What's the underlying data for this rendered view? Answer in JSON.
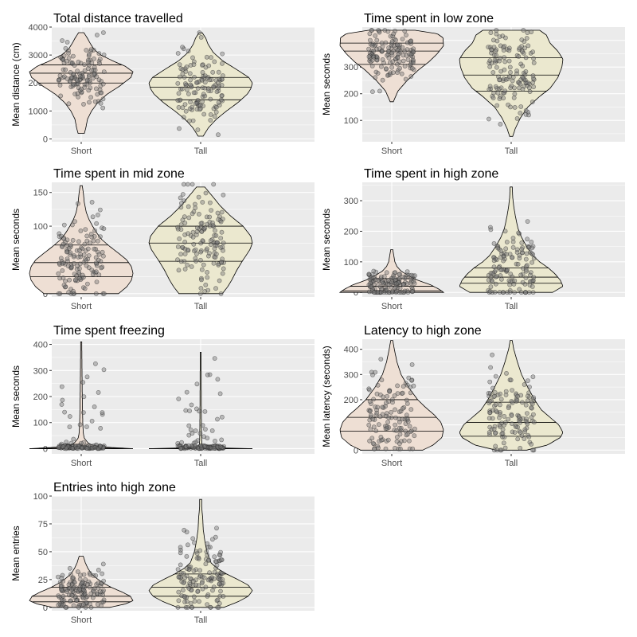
{
  "style": {
    "panel_bg": "#ebebeb",
    "grid_major": "#ffffff",
    "short_fill": "#eedfd4",
    "tall_fill": "#ebe8cf",
    "outline": "#000000",
    "point_fill": "#7a7a7a"
  },
  "chart_data": [
    {
      "type": "violin",
      "title": "Total distance travelled",
      "xlabel": "",
      "ylabel": "Mean distance (cm)",
      "categories": [
        "Short",
        "Tall"
      ],
      "ylim": [
        -100,
        4000
      ],
      "yticks": [
        0,
        1000,
        2000,
        3000,
        4000
      ],
      "yticklabels": [
        "0",
        "1000",
        "2000",
        "3000",
        "4000"
      ],
      "groups": [
        {
          "name": "Short",
          "density": [
            [
              200,
              0.06
            ],
            [
              400,
              0.09
            ],
            [
              700,
              0.12
            ],
            [
              1000,
              0.2
            ],
            [
              1300,
              0.32
            ],
            [
              1600,
              0.5
            ],
            [
              1900,
              0.75
            ],
            [
              2200,
              0.96
            ],
            [
              2400,
              1
            ],
            [
              2600,
              0.85
            ],
            [
              2800,
              0.6
            ],
            [
              3000,
              0.38
            ],
            [
              3200,
              0.25
            ],
            [
              3400,
              0.18
            ],
            [
              3600,
              0.12
            ],
            [
              3800,
              0.05
            ]
          ],
          "quantiles": [
            2000,
            2350,
            2650
          ],
          "n_points": 130,
          "point_mean": 2300,
          "point_sd": 600,
          "point_range": [
            150,
            3800
          ]
        },
        {
          "name": "Tall",
          "density": [
            [
              100,
              0.05
            ],
            [
              400,
              0.15
            ],
            [
              700,
              0.3
            ],
            [
              1000,
              0.5
            ],
            [
              1300,
              0.72
            ],
            [
              1600,
              0.9
            ],
            [
              1800,
              0.97
            ],
            [
              2000,
              1
            ],
            [
              2200,
              0.93
            ],
            [
              2500,
              0.68
            ],
            [
              2800,
              0.42
            ],
            [
              3100,
              0.24
            ],
            [
              3400,
              0.14
            ],
            [
              3600,
              0.1
            ],
            [
              3800,
              0.03
            ]
          ],
          "quantiles": [
            1400,
            1850,
            2200
          ],
          "n_points": 130,
          "point_mean": 1850,
          "point_sd": 700,
          "point_range": [
            80,
            3800
          ]
        }
      ]
    },
    {
      "type": "violin",
      "title": "Time spent in low zone",
      "xlabel": "",
      "ylabel": "Mean seconds",
      "categories": [
        "Short",
        "Tall"
      ],
      "ylim": [
        20,
        450
      ],
      "yticks": [
        100,
        200,
        300,
        400
      ],
      "yticklabels": [
        "100",
        "200",
        "300",
        "400"
      ],
      "groups": [
        {
          "name": "Short",
          "density": [
            [
              170,
              0.03
            ],
            [
              210,
              0.12
            ],
            [
              250,
              0.3
            ],
            [
              290,
              0.52
            ],
            [
              320,
              0.72
            ],
            [
              350,
              0.88
            ],
            [
              380,
              1
            ],
            [
              410,
              0.99
            ],
            [
              425,
              0.88
            ],
            [
              438,
              0.45
            ]
          ],
          "quantiles": [
            310,
            360,
            390
          ],
          "n_points": 140,
          "point_mean": 360,
          "point_sd": 45,
          "point_range": [
            170,
            438
          ]
        },
        {
          "name": "Tall",
          "density": [
            [
              40,
              0.03
            ],
            [
              70,
              0.08
            ],
            [
              110,
              0.18
            ],
            [
              150,
              0.32
            ],
            [
              190,
              0.55
            ],
            [
              220,
              0.75
            ],
            [
              260,
              0.9
            ],
            [
              300,
              0.98
            ],
            [
              330,
              1
            ],
            [
              360,
              0.9
            ],
            [
              390,
              0.75
            ],
            [
              420,
              0.68
            ],
            [
              438,
              0.55
            ]
          ],
          "quantiles": [
            210,
            270,
            335
          ],
          "n_points": 140,
          "point_mean": 270,
          "point_sd": 90,
          "point_range": [
            45,
            438
          ]
        }
      ]
    },
    {
      "type": "violin",
      "title": "Time spent in mid zone",
      "xlabel": "",
      "ylabel": "Mean seconds",
      "categories": [
        "Short",
        "Tall"
      ],
      "ylim": [
        -5,
        165
      ],
      "yticks": [
        0,
        50,
        100,
        150
      ],
      "yticklabels": [
        "0",
        "50",
        "100",
        "150"
      ],
      "groups": [
        {
          "name": "Short",
          "density": [
            [
              0,
              0.72
            ],
            [
              10,
              0.88
            ],
            [
              20,
              0.97
            ],
            [
              30,
              1
            ],
            [
              40,
              0.97
            ],
            [
              50,
              0.88
            ],
            [
              60,
              0.72
            ],
            [
              70,
              0.55
            ],
            [
              80,
              0.4
            ],
            [
              90,
              0.3
            ],
            [
              100,
              0.22
            ],
            [
              110,
              0.15
            ],
            [
              120,
              0.1
            ],
            [
              135,
              0.06
            ],
            [
              150,
              0.04
            ],
            [
              160,
              0.02
            ]
          ],
          "quantiles": [
            25,
            46,
            72
          ],
          "n_points": 140,
          "point_mean": 50,
          "point_sd": 35,
          "point_range": [
            0,
            162
          ]
        },
        {
          "name": "Tall",
          "density": [
            [
              0,
              0.42
            ],
            [
              10,
              0.52
            ],
            [
              20,
              0.6
            ],
            [
              35,
              0.7
            ],
            [
              50,
              0.82
            ],
            [
              65,
              0.95
            ],
            [
              75,
              1
            ],
            [
              85,
              0.97
            ],
            [
              100,
              0.82
            ],
            [
              115,
              0.58
            ],
            [
              130,
              0.38
            ],
            [
              145,
              0.22
            ],
            [
              158,
              0.08
            ]
          ],
          "quantiles": [
            48,
            75,
            100
          ],
          "n_points": 140,
          "point_mean": 72,
          "point_sd": 38,
          "point_range": [
            0,
            162
          ]
        }
      ]
    },
    {
      "type": "violin",
      "title": "Time spent in high zone",
      "xlabel": "",
      "ylabel": "Mean seconds",
      "categories": [
        "Short",
        "Tall"
      ],
      "ylim": [
        -15,
        360
      ],
      "yticks": [
        0,
        100,
        200,
        300
      ],
      "yticklabels": [
        "0",
        "100",
        "200",
        "300"
      ],
      "groups": [
        {
          "name": "Short",
          "density": [
            [
              0,
              1
            ],
            [
              10,
              0.92
            ],
            [
              25,
              0.75
            ],
            [
              40,
              0.5
            ],
            [
              55,
              0.32
            ],
            [
              70,
              0.18
            ],
            [
              85,
              0.1
            ],
            [
              100,
              0.06
            ],
            [
              120,
              0.04
            ],
            [
              140,
              0.02
            ]
          ],
          "quantiles": [
            5,
            20,
            45
          ],
          "n_points": 130,
          "point_mean": 25,
          "point_sd": 25,
          "point_range": [
            0,
            140
          ]
        },
        {
          "name": "Tall",
          "density": [
            [
              0,
              0.8
            ],
            [
              20,
              1
            ],
            [
              40,
              0.95
            ],
            [
              60,
              0.85
            ],
            [
              80,
              0.72
            ],
            [
              100,
              0.55
            ],
            [
              120,
              0.42
            ],
            [
              150,
              0.3
            ],
            [
              180,
              0.2
            ],
            [
              210,
              0.13
            ],
            [
              250,
              0.08
            ],
            [
              280,
              0.05
            ],
            [
              310,
              0.03
            ],
            [
              345,
              0.02
            ]
          ],
          "quantiles": [
            30,
            50,
            80
          ],
          "n_points": 130,
          "point_mean": 80,
          "point_sd": 65,
          "point_range": [
            0,
            345
          ]
        }
      ]
    },
    {
      "type": "violin",
      "title": "Time spent freezing",
      "xlabel": "",
      "ylabel": "Mean seconds",
      "categories": [
        "Short",
        "Tall"
      ],
      "ylim": [
        -20,
        420
      ],
      "yticks": [
        0,
        100,
        200,
        300,
        400
      ],
      "yticklabels": [
        "0",
        "100",
        "200",
        "300",
        "400"
      ],
      "groups": [
        {
          "name": "Short",
          "density": [
            [
              0,
              1
            ],
            [
              5,
              0.55
            ],
            [
              10,
              0.28
            ],
            [
              20,
              0.14
            ],
            [
              40,
              0.06
            ],
            [
              60,
              0.04
            ],
            [
              100,
              0.03
            ],
            [
              200,
              0.02
            ],
            [
              300,
              0.015
            ],
            [
              410,
              0.01
            ]
          ],
          "quantiles": [
            0,
            2,
            8
          ],
          "n_points": 130,
          "point_mean": 30,
          "point_sd": 70,
          "point_range": [
            0,
            410
          ]
        },
        {
          "name": "Tall",
          "density": [
            [
              0,
              1
            ],
            [
              3,
              0.2
            ],
            [
              6,
              0.06
            ],
            [
              15,
              0.025
            ],
            [
              40,
              0.018
            ],
            [
              100,
              0.015
            ],
            [
              200,
              0.012
            ],
            [
              300,
              0.01
            ],
            [
              370,
              0.008
            ]
          ],
          "quantiles": [
            0,
            0,
            2
          ],
          "n_points": 130,
          "point_mean": 20,
          "point_sd": 60,
          "point_range": [
            0,
            370
          ]
        }
      ]
    },
    {
      "type": "violin",
      "title": "Latency to high zone",
      "xlabel": "",
      "ylabel": "Mean latency (seconds)",
      "categories": [
        "Short",
        "Tall"
      ],
      "ylim": [
        -15,
        440
      ],
      "yticks": [
        0,
        100,
        200,
        300,
        400
      ],
      "yticklabels": [
        "0",
        "100",
        "200",
        "300",
        "400"
      ],
      "groups": [
        {
          "name": "Short",
          "density": [
            [
              0,
              0.6
            ],
            [
              20,
              0.8
            ],
            [
              50,
              0.97
            ],
            [
              80,
              1
            ],
            [
              110,
              0.95
            ],
            [
              140,
              0.82
            ],
            [
              170,
              0.65
            ],
            [
              200,
              0.5
            ],
            [
              250,
              0.32
            ],
            [
              300,
              0.18
            ],
            [
              350,
              0.1
            ],
            [
              400,
              0.05
            ],
            [
              435,
              0.02
            ]
          ],
          "quantiles": [
            75,
            130,
            200
          ],
          "n_points": 130,
          "point_mean": 140,
          "point_sd": 85,
          "point_range": [
            5,
            435
          ]
        },
        {
          "name": "Tall",
          "density": [
            [
              0,
              0.3
            ],
            [
              20,
              0.7
            ],
            [
              50,
              0.95
            ],
            [
              70,
              1
            ],
            [
              100,
              0.92
            ],
            [
              130,
              0.75
            ],
            [
              160,
              0.58
            ],
            [
              200,
              0.45
            ],
            [
              250,
              0.32
            ],
            [
              300,
              0.2
            ],
            [
              350,
              0.12
            ],
            [
              400,
              0.05
            ],
            [
              435,
              0.02
            ]
          ],
          "quantiles": [
            55,
            110,
            190
          ],
          "n_points": 130,
          "point_mean": 120,
          "point_sd": 95,
          "point_range": [
            0,
            435
          ]
        }
      ]
    },
    {
      "type": "violin",
      "title": "Entries into high zone",
      "xlabel": "",
      "ylabel": "Mean entries",
      "categories": [
        "Short",
        "Tall"
      ],
      "ylim": [
        -3,
        100
      ],
      "yticks": [
        0,
        25,
        50,
        75,
        100
      ],
      "yticklabels": [
        "0",
        "25",
        "50",
        "75",
        "100"
      ],
      "groups": [
        {
          "name": "Short",
          "density": [
            [
              0,
              0.55
            ],
            [
              3,
              0.85
            ],
            [
              6,
              1
            ],
            [
              10,
              0.95
            ],
            [
              14,
              0.78
            ],
            [
              18,
              0.58
            ],
            [
              22,
              0.42
            ],
            [
              26,
              0.3
            ],
            [
              30,
              0.2
            ],
            [
              35,
              0.13
            ],
            [
              40,
              0.08
            ],
            [
              46,
              0.04
            ]
          ],
          "quantiles": [
            5,
            10,
            18
          ],
          "n_points": 140,
          "point_mean": 14,
          "point_sd": 10,
          "point_range": [
            0,
            46
          ]
        },
        {
          "name": "Tall",
          "density": [
            [
              0,
              0.45
            ],
            [
              5,
              0.72
            ],
            [
              10,
              0.92
            ],
            [
              15,
              1
            ],
            [
              20,
              0.92
            ],
            [
              25,
              0.72
            ],
            [
              30,
              0.5
            ],
            [
              35,
              0.32
            ],
            [
              40,
              0.2
            ],
            [
              50,
              0.12
            ],
            [
              60,
              0.08
            ],
            [
              70,
              0.05
            ],
            [
              80,
              0.04
            ],
            [
              90,
              0.02
            ],
            [
              97,
              0.02
            ]
          ],
          "quantiles": [
            10,
            18,
            30
          ],
          "n_points": 140,
          "point_mean": 24,
          "point_sd": 18,
          "point_range": [
            0,
            97
          ]
        }
      ]
    }
  ]
}
